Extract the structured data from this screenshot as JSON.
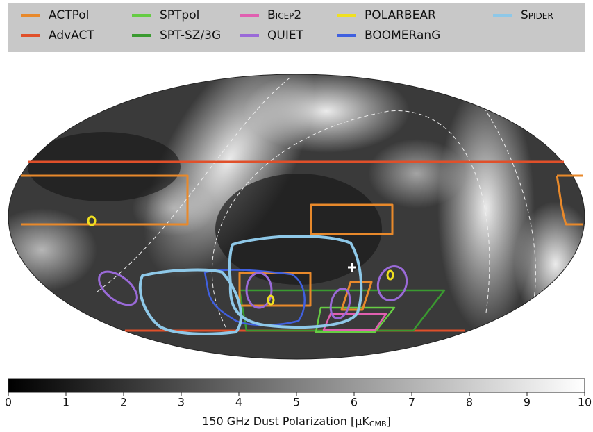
{
  "legend": [
    {
      "name": "ACTPol",
      "color": "#e8892b"
    },
    {
      "name": "AdvACT",
      "color": "#e0502a"
    },
    {
      "name": "SPTpol",
      "color": "#66cc44"
    },
    {
      "name": "SPT-SZ/3G",
      "color": "#3a9a30"
    },
    {
      "name": "Bicep2",
      "color": "#e060b0"
    },
    {
      "name": "QUIET",
      "color": "#9a6ad8"
    },
    {
      "name": "POLARBEAR",
      "color": "#f0e020"
    },
    {
      "name": "BOOMERanG",
      "color": "#4060e0"
    },
    {
      "name": "Spider",
      "color": "#8ec8e8"
    }
  ],
  "colorbar": {
    "lim": [
      0,
      10
    ],
    "ticks": [
      0,
      1,
      2,
      3,
      4,
      5,
      6,
      7,
      8,
      9,
      10
    ],
    "label": "150 GHz Dust Polarization [μK",
    "label_sub": "CMB",
    "label_end": "]"
  }
}
